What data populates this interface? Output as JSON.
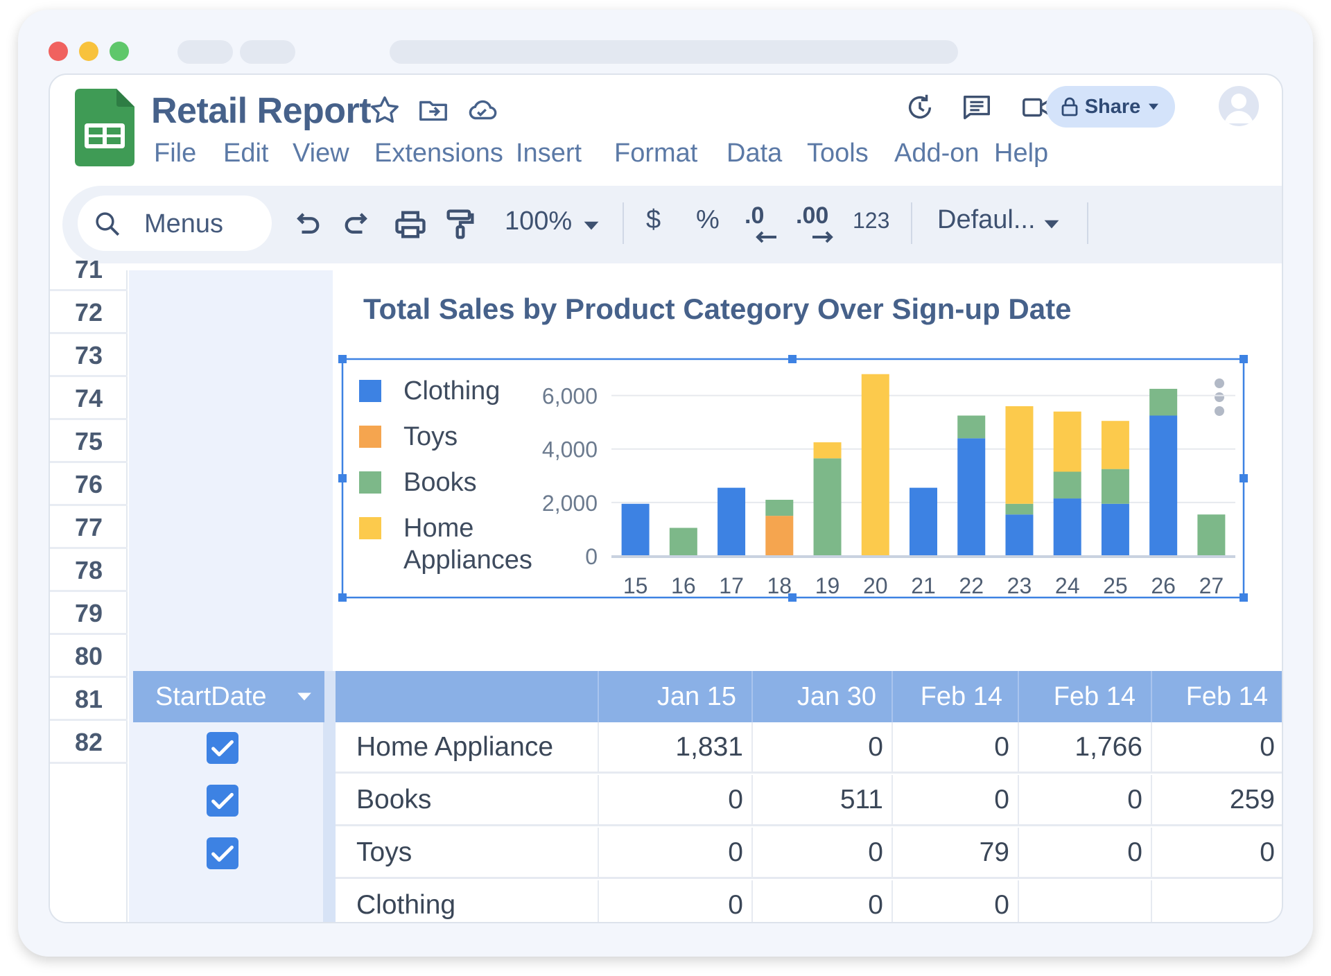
{
  "window": {
    "dots": [
      "#f0625f",
      "#f8c23c",
      "#5fc76b"
    ]
  },
  "header": {
    "title": "Retail Report",
    "menu": [
      "File",
      "Edit",
      "View",
      "Extensions",
      "Insert",
      "Format",
      "Data",
      "Tools",
      "Add-on",
      "Help"
    ],
    "share_label": "Share"
  },
  "toolbar": {
    "search_label": "Menus",
    "zoom": "100%",
    "currency": "$",
    "percent": "%",
    "decrease_decimal": ".0",
    "increase_decimal": ".00",
    "number_format": "123",
    "font": "Defaul..."
  },
  "rows": [
    "71",
    "72",
    "73",
    "74",
    "75",
    "76",
    "77",
    "78",
    "79",
    "80",
    "81",
    "82"
  ],
  "chart_data": {
    "type": "bar",
    "title": "Total Sales by Product Category Over Sign-up Date",
    "categories": [
      "15",
      "16",
      "17",
      "18",
      "19",
      "20",
      "21",
      "22",
      "23",
      "24",
      "25",
      "26",
      "27"
    ],
    "ylim": [
      0,
      7000
    ],
    "yticks": [
      "0",
      "2,000",
      "4,000",
      "6,000"
    ],
    "ytick_values": [
      0,
      2000,
      4000,
      6000
    ],
    "grid": true,
    "legend_placement": "left",
    "series": [
      {
        "name": "Clothing",
        "color": "#3d82e3",
        "values": [
          1950,
          0,
          2550,
          0,
          0,
          0,
          2550,
          4400,
          1550,
          2150,
          1950,
          5250,
          0
        ]
      },
      {
        "name": "Toys",
        "color": "#f5a54f",
        "values": [
          0,
          0,
          0,
          1500,
          0,
          0,
          0,
          0,
          0,
          0,
          0,
          0,
          0
        ]
      },
      {
        "name": "Books",
        "color": "#7db889",
        "values": [
          0,
          1050,
          0,
          600,
          3650,
          0,
          0,
          850,
          400,
          1000,
          1300,
          1000,
          1550
        ]
      },
      {
        "name": "Home\nAppliances",
        "color": "#fcca4c",
        "values": [
          0,
          0,
          0,
          0,
          600,
          6800,
          0,
          0,
          3650,
          2250,
          1800,
          0,
          0
        ]
      }
    ]
  },
  "table": {
    "startdate_label": "StartDate",
    "headers": [
      "",
      "Jan 15",
      "Jan 30",
      "Feb 14",
      "Feb 14",
      "Feb 14"
    ],
    "rows": [
      {
        "label": "Home Appliance",
        "values": [
          "1,831",
          "0",
          "0",
          "1,766",
          "0"
        ],
        "checked": true
      },
      {
        "label": "Books",
        "values": [
          "0",
          "511",
          "0",
          "0",
          "259"
        ],
        "checked": true
      },
      {
        "label": "Toys",
        "values": [
          "0",
          "0",
          "79",
          "0",
          "0"
        ],
        "checked": true
      },
      {
        "label": "Clothing",
        "values": [
          "0",
          "0",
          "0",
          "",
          ""
        ],
        "checked": false
      }
    ]
  }
}
